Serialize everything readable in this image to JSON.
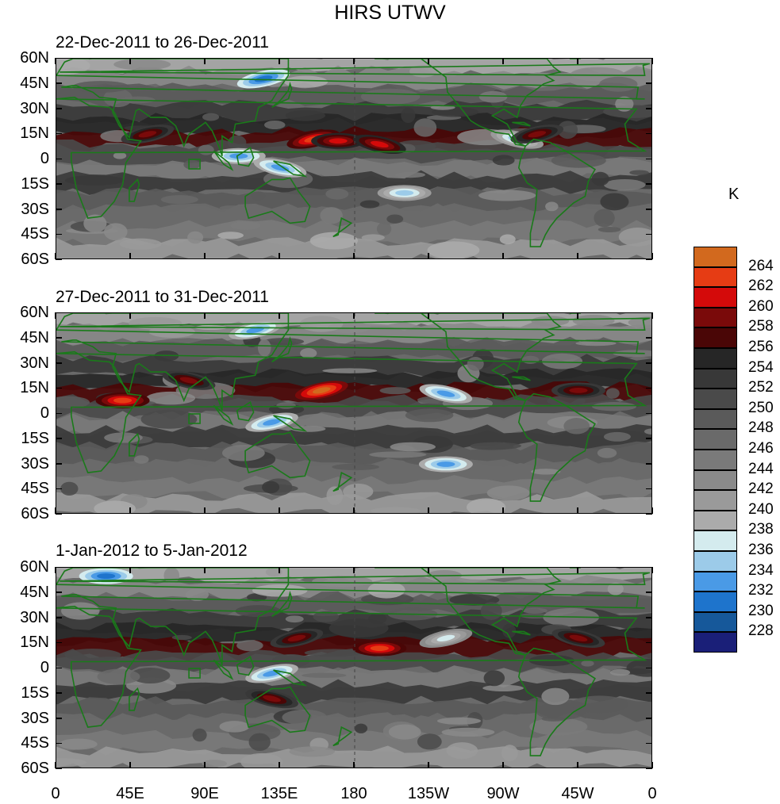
{
  "title": "HIRS UTWV",
  "chart_data": {
    "type": "heatmap",
    "title": "HIRS UTWV",
    "units": "K",
    "panels": [
      {
        "title": "22-Dec-2011 to 26-Dec-2011",
        "features": [
          {
            "lon": 155,
            "lat": 12,
            "value": 262
          },
          {
            "lon": 170,
            "lat": 11,
            "value": 260
          },
          {
            "lon": 195,
            "lat": 9,
            "value": 260
          },
          {
            "lon": 55,
            "lat": 15,
            "value": 259
          },
          {
            "lon": 110,
            "lat": 2,
            "value": 232
          },
          {
            "lon": 135,
            "lat": -5,
            "value": 232
          },
          {
            "lon": 125,
            "lat": 48,
            "value": 230
          },
          {
            "lon": 210,
            "lat": -20,
            "value": 234
          },
          {
            "lon": 278,
            "lat": 12,
            "value": 234
          },
          {
            "lon": 290,
            "lat": 15,
            "value": 258
          }
        ]
      },
      {
        "title": "27-Dec-2011 to 31-Dec-2011",
        "features": [
          {
            "lon": 160,
            "lat": 14,
            "value": 264
          },
          {
            "lon": 40,
            "lat": 8,
            "value": 262
          },
          {
            "lon": 80,
            "lat": 20,
            "value": 258
          },
          {
            "lon": 130,
            "lat": -5,
            "value": 232
          },
          {
            "lon": 235,
            "lat": -30,
            "value": 232
          },
          {
            "lon": 235,
            "lat": 12,
            "value": 232
          },
          {
            "lon": 120,
            "lat": 50,
            "value": 232
          },
          {
            "lon": 315,
            "lat": 14,
            "value": 258
          }
        ]
      },
      {
        "title": "1-Jan-2012 to 5-Jan-2012",
        "features": [
          {
            "lon": 145,
            "lat": 18,
            "value": 258
          },
          {
            "lon": 195,
            "lat": 12,
            "value": 262
          },
          {
            "lon": 130,
            "lat": -18,
            "value": 258
          },
          {
            "lon": 130,
            "lat": -3,
            "value": 232
          },
          {
            "lon": 30,
            "lat": 55,
            "value": 230
          },
          {
            "lon": 315,
            "lat": 18,
            "value": 258
          },
          {
            "lon": 235,
            "lat": 18,
            "value": 236
          }
        ]
      }
    ],
    "y_ticks": [
      "60N",
      "45N",
      "30N",
      "15N",
      "0",
      "15S",
      "30S",
      "45S",
      "60S"
    ],
    "x_ticks": [
      "0",
      "45E",
      "90E",
      "135E",
      "180",
      "135W",
      "90W",
      "45W",
      "0"
    ],
    "ylim": [
      -60,
      60
    ],
    "xlim": [
      0,
      360
    ],
    "colorbar": {
      "levels": [
        228,
        230,
        232,
        234,
        236,
        238,
        240,
        242,
        244,
        246,
        248,
        250,
        252,
        254,
        256,
        258,
        260,
        262,
        264
      ],
      "labels": [
        "228",
        "230",
        "232",
        "234",
        "236",
        "238",
        "240",
        "242",
        "244",
        "246",
        "248",
        "250",
        "252",
        "254",
        "256",
        "258",
        "260",
        "262",
        "264"
      ],
      "colors": [
        "#1a1f78",
        "#16589a",
        "#1e74cc",
        "#4a9ae6",
        "#9ccbe9",
        "#d4ebee",
        "#ababab",
        "#9a9a9a",
        "#8a8a8a",
        "#7a7a7a",
        "#6a6a6a",
        "#5a5a5a",
        "#4a4a4a",
        "#383838",
        "#262626",
        "#4a0606",
        "#7a0a0a",
        "#d40a0a",
        "#e63c14",
        "#d2691e"
      ]
    }
  }
}
